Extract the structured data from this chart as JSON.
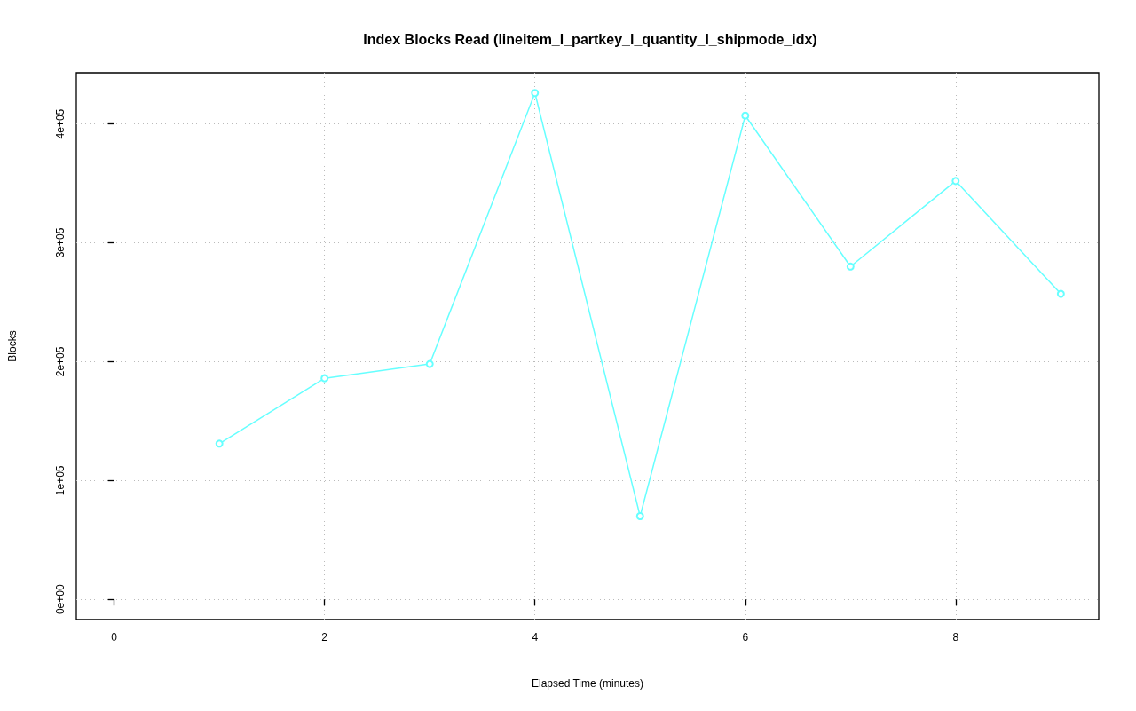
{
  "chart_data": {
    "type": "line",
    "title": "Index Blocks Read (lineitem_l_partkey_l_quantity_l_shipmode_idx)",
    "xlabel": "Elapsed Time (minutes)",
    "ylabel": "Blocks",
    "x": [
      1,
      2,
      3,
      4,
      5,
      6,
      7,
      8,
      9
    ],
    "series": [
      {
        "color": "#66ffff",
        "values": [
          131000,
          186000,
          198000,
          426000,
          70000,
          407000,
          280000,
          352000,
          257000
        ]
      }
    ],
    "xlim": [
      -0.36,
      9.36
    ],
    "xticks": [
      0,
      2,
      4,
      6,
      8
    ],
    "ylim": [
      -17000,
      443000
    ],
    "yticks": [
      {
        "value": 0,
        "label": "0e+00"
      },
      {
        "value": 100000,
        "label": "1e+05"
      },
      {
        "value": 200000,
        "label": "2e+05"
      },
      {
        "value": 300000,
        "label": "3e+05"
      },
      {
        "value": 400000,
        "label": "4e+05"
      }
    ],
    "grid": true,
    "marker": "circle",
    "line_style": "solid"
  }
}
